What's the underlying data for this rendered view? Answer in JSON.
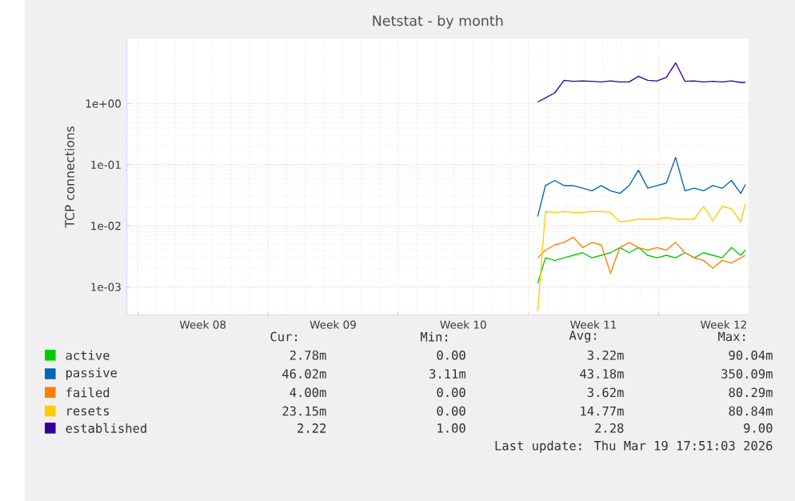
{
  "chart_data": {
    "type": "line",
    "title": "Netstat - by month",
    "ylabel": "TCP connections",
    "x": [
      "2026-03-08T12:00",
      "2026-03-08T22:00",
      "2026-03-09T10:00",
      "2026-03-09T22:00",
      "2026-03-10T10:00",
      "2026-03-10T22:00",
      "2026-03-11T10:00",
      "2026-03-11T22:00",
      "2026-03-12T10:00",
      "2026-03-12T22:00",
      "2026-03-13T10:00",
      "2026-03-13T22:00",
      "2026-03-14T10:00",
      "2026-03-14T22:00",
      "2026-03-15T10:00",
      "2026-03-15T22:00",
      "2026-03-16T10:00",
      "2026-03-16T22:00",
      "2026-03-17T10:00",
      "2026-03-17T22:00",
      "2026-03-18T10:00",
      "2026-03-18T22:00",
      "2026-03-19T10:00",
      "2026-03-19T16:00"
    ],
    "series": [
      {
        "name": "active",
        "color": "#00cc00",
        "values": [
          0.00114,
          0.003,
          0.00272,
          0.003,
          0.0033,
          0.00364,
          0.003,
          0.0033,
          0.00364,
          0.00442,
          0.00364,
          0.00442,
          0.0033,
          0.003,
          0.0033,
          0.003,
          0.00364,
          0.003,
          0.00364,
          0.0033,
          0.003,
          0.00442,
          0.0033,
          0.00401
        ]
      },
      {
        "name": "passive",
        "color": "#0066b3",
        "values": [
          0.0142,
          0.0455,
          0.0553,
          0.0455,
          0.0455,
          0.0413,
          0.0375,
          0.0455,
          0.0375,
          0.034,
          0.0455,
          0.0815,
          0.0413,
          0.0455,
          0.0501,
          0.132,
          0.0375,
          0.0413,
          0.0375,
          0.0455,
          0.0413,
          0.0553,
          0.034,
          0.0473
        ]
      },
      {
        "name": "failed",
        "color": "#ff8000",
        "values": [
          0.003,
          0.00401,
          0.00488,
          0.00537,
          0.00652,
          0.00442,
          0.00537,
          0.00488,
          0.00167,
          0.00442,
          0.00537,
          0.00442,
          0.00401,
          0.00442,
          0.00401,
          0.00537,
          0.00364,
          0.003,
          0.00272,
          0.00203,
          0.00272,
          0.00247,
          0.003,
          0.0033
        ]
      },
      {
        "name": "resets",
        "color": "#ffcc00",
        "values": [
          0.0004,
          0.0172,
          0.0166,
          0.0172,
          0.0166,
          0.0166,
          0.0172,
          0.0172,
          0.0166,
          0.0117,
          0.0121,
          0.0129,
          0.0129,
          0.0129,
          0.0137,
          0.0129,
          0.0129,
          0.0129,
          0.0209,
          0.0121,
          0.0209,
          0.019,
          0.0117,
          0.0231
        ]
      },
      {
        "name": "established",
        "color": "#330099",
        "values": [
          1.06,
          1.24,
          1.5,
          2.4,
          2.31,
          2.35,
          2.31,
          2.26,
          2.35,
          2.26,
          2.26,
          2.8,
          2.4,
          2.35,
          2.69,
          4.64,
          2.31,
          2.35,
          2.26,
          2.31,
          2.26,
          2.35,
          2.22,
          2.22
        ]
      }
    ],
    "xlim": [
      "2026-02-14T10:00",
      "2026-03-19T20:00"
    ],
    "xticks": [
      {
        "value": "2026-02-15",
        "label": null
      },
      {
        "value": "2026-02-18T12:00",
        "label": "Week 08"
      },
      {
        "value": "2026-02-22",
        "label": null
      },
      {
        "value": "2026-02-25T12:00",
        "label": "Week 09"
      },
      {
        "value": "2026-03-01",
        "label": null
      },
      {
        "value": "2026-03-04T12:00",
        "label": "Week 10"
      },
      {
        "value": "2026-03-08",
        "label": null
      },
      {
        "value": "2026-03-11T12:00",
        "label": "Week 11"
      },
      {
        "value": "2026-03-15",
        "label": null
      },
      {
        "value": "2026-03-18T12:00",
        "label": "Week 12"
      }
    ],
    "ylim": [
      0.00035,
      11.5
    ],
    "yticks": [
      {
        "value": 0.001,
        "label": "1e-03"
      },
      {
        "value": 0.01,
        "label": "1e-02"
      },
      {
        "value": 0.1,
        "label": "1e-01"
      },
      {
        "value": 1,
        "label": "1e+00"
      }
    ],
    "log": "y",
    "grid": true,
    "legend": "bottom",
    "marker": "none",
    "line_style": "solid",
    "annotations": [
      "Cur:",
      "Min:",
      "Avg:",
      "Max:",
      "2.78m",
      "0.00",
      "3.22m",
      "90.04m",
      "46.02m",
      "3.11m",
      "43.18m",
      "350.09m",
      "4.00m",
      "0.00",
      "3.62m",
      "80.29m",
      "23.15m",
      "0.00",
      "14.77m",
      "80.84m",
      "2.22",
      "1.00",
      "2.28",
      "9.00",
      "Last update: Thu Mar 19 17:51:03 2026"
    ]
  }
}
